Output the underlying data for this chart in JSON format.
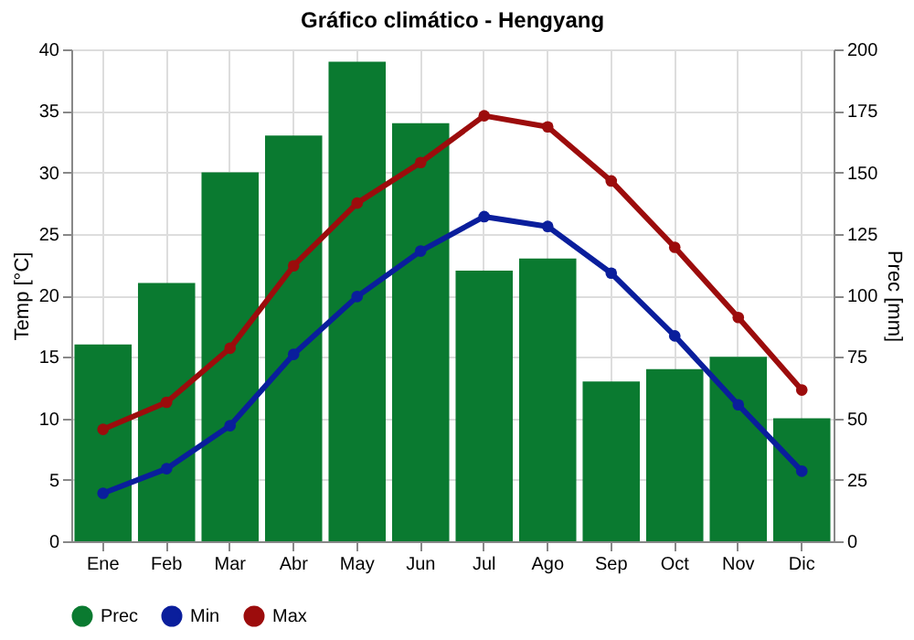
{
  "chart_data": {
    "type": "bar",
    "title": "Gráfico climático - Hengyang",
    "ylabel": "Temp [°C]",
    "y2label": "Prec [mm]",
    "categories": [
      "Ene",
      "Feb",
      "Mar",
      "Abr",
      "May",
      "Jun",
      "Jul",
      "Ago",
      "Sep",
      "Oct",
      "Nov",
      "Dic"
    ],
    "series": [
      {
        "name": "Prec",
        "axis": "y2",
        "color": "#0a7a30",
        "values": [
          80,
          105,
          150,
          165,
          195,
          170,
          110,
          115,
          65,
          70,
          75,
          50
        ]
      },
      {
        "name": "Min",
        "type": "line",
        "color": "#0a1e9c",
        "values": [
          3.9,
          5.9,
          9.4,
          15.2,
          19.9,
          23.6,
          26.4,
          25.6,
          21.8,
          16.7,
          11.1,
          5.7
        ]
      },
      {
        "name": "Max",
        "type": "line",
        "color": "#9c0c0c",
        "values": [
          9.1,
          11.3,
          15.7,
          22.4,
          27.5,
          30.8,
          34.6,
          33.7,
          29.3,
          23.9,
          18.2,
          12.3
        ]
      }
    ],
    "ylim": [
      0,
      40
    ],
    "yticks": [
      0,
      5,
      10,
      15,
      20,
      25,
      30,
      35,
      40
    ],
    "y2lim": [
      0,
      200
    ],
    "y2ticks": [
      0,
      25,
      50,
      75,
      100,
      125,
      150,
      175,
      200
    ],
    "grid": true,
    "legend": "bottom",
    "marker": "circle",
    "line_style": "solid"
  }
}
